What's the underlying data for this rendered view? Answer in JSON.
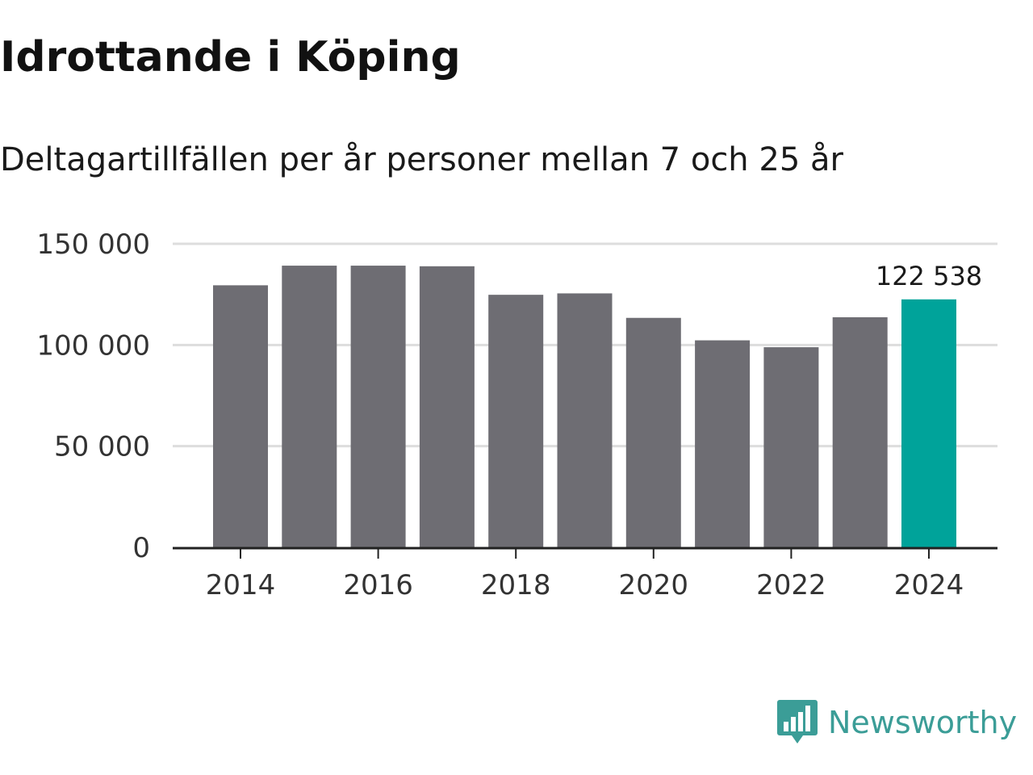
{
  "header": {
    "title": "Idrottande i Köping",
    "subtitle": "Deltagartillfällen per år personer mellan 7 och 25 år"
  },
  "brand": {
    "name": "Newsworthy",
    "color": "#3b9d97"
  },
  "colors": {
    "bar": "#6e6d73",
    "highlight": "#00a39a",
    "grid": "#dddddd",
    "axis": "#222222"
  },
  "chart_data": {
    "type": "bar",
    "title": "Idrottande i Köping",
    "subtitle": "Deltagartillfällen per år personer mellan 7 och 25 år",
    "xlabel": "",
    "ylabel": "",
    "ylim": [
      0,
      150000
    ],
    "grid": true,
    "categories": [
      2014,
      2015,
      2016,
      2017,
      2018,
      2019,
      2020,
      2021,
      2022,
      2023,
      2024
    ],
    "values": [
      129500,
      139200,
      139200,
      138900,
      124800,
      125500,
      113400,
      102300,
      98900,
      113700,
      122538
    ],
    "highlight_index": 10,
    "x_tick_labels": [
      "2014",
      "2016",
      "2018",
      "2020",
      "2022",
      "2024"
    ],
    "x_tick_values": [
      2014,
      2016,
      2018,
      2020,
      2022,
      2024
    ],
    "y_tick_labels": [
      "0",
      "50 000",
      "100 000",
      "150 000"
    ],
    "y_tick_values": [
      0,
      50000,
      100000,
      150000
    ],
    "annotations": [
      {
        "index": 10,
        "text": "122 538"
      }
    ]
  }
}
